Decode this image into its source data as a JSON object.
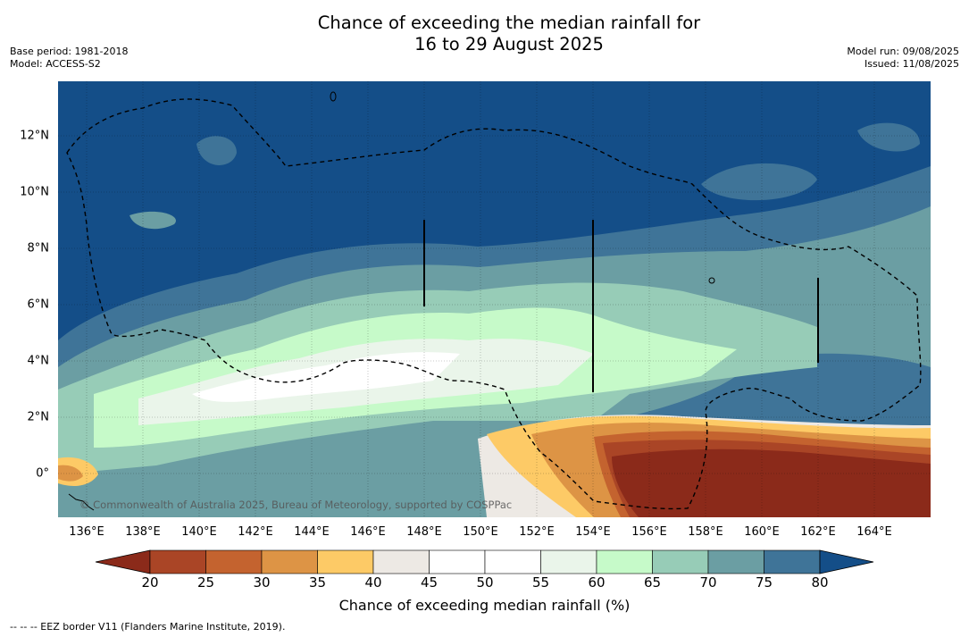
{
  "title": {
    "line1": "Chance of exceeding the median rainfall for",
    "line2": "16 to 29 August 2025"
  },
  "meta_left": {
    "base_period": "Base period: 1981-2018",
    "model": "Model: ACCESS-S2"
  },
  "meta_right": {
    "model_run": "Model run: 09/08/2025",
    "issued": "Issued: 11/08/2025"
  },
  "map": {
    "x_ticks": [
      "136°E",
      "138°E",
      "140°E",
      "142°E",
      "144°E",
      "146°E",
      "148°E",
      "150°E",
      "152°E",
      "154°E",
      "156°E",
      "158°E",
      "160°E",
      "162°E",
      "164°E"
    ],
    "y_ticks": [
      "12°N",
      "10°N",
      "8°N",
      "6°N",
      "4°N",
      "2°N",
      "0°"
    ],
    "copyright": "© Commonwealth of Australia 2025, Bureau of Meteorology, supported by COSPPac"
  },
  "colorbar": {
    "labels": [
      "20",
      "25",
      "30",
      "35",
      "40",
      "45",
      "50",
      "55",
      "60",
      "65",
      "70",
      "75",
      "80"
    ],
    "colors": [
      "#8b2a1a",
      "#aa4526",
      "#c4632f",
      "#dd9445",
      "#fdca66",
      "#ede9e4",
      "#ffffff",
      "#ffffff",
      "#eaf5ea",
      "#c6fac9",
      "#97ccb7",
      "#6b9ea3",
      "#3f7498",
      "#144e88"
    ],
    "title": "Chance of exceeding median rainfall (%)"
  },
  "footer": {
    "eez_note": "--  --  -- EEZ border V11 (Flanders Marine Institute, 2019)."
  }
}
